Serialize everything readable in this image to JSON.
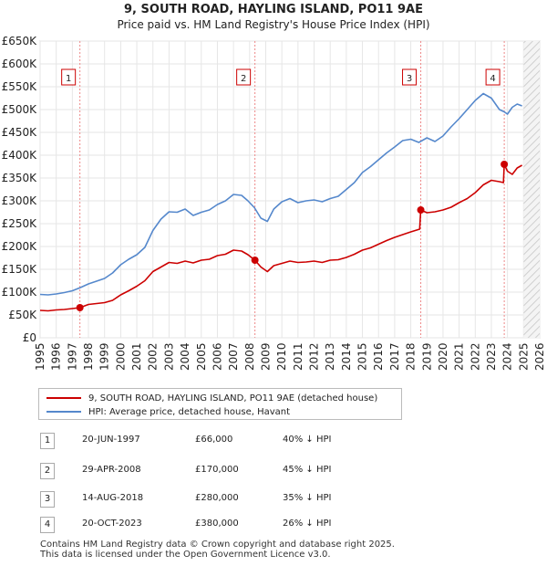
{
  "header": {
    "title": "9, SOUTH ROAD, HAYLING ISLAND, PO11 9AE",
    "subtitle": "Price paid vs. HM Land Registry's House Price Index (HPI)"
  },
  "chart_data": {
    "type": "line",
    "title": "9, SOUTH ROAD, HAYLING ISLAND, PO11 9AE",
    "subtitle": "Price paid vs. HM Land Registry's House Price Index (HPI)",
    "xlim": [
      1995,
      2026
    ],
    "ylim": [
      0,
      650000
    ],
    "y_ticks": [
      0,
      50000,
      100000,
      150000,
      200000,
      250000,
      300000,
      350000,
      400000,
      450000,
      500000,
      550000,
      600000,
      650000
    ],
    "y_tick_labels": [
      "£0",
      "£50K",
      "£100K",
      "£150K",
      "£200K",
      "£250K",
      "£300K",
      "£350K",
      "£400K",
      "£450K",
      "£500K",
      "£550K",
      "£600K",
      "£650K"
    ],
    "x_ticks": [
      1995,
      1996,
      1997,
      1998,
      1999,
      2000,
      2001,
      2002,
      2003,
      2004,
      2005,
      2006,
      2007,
      2008,
      2009,
      2010,
      2011,
      2012,
      2013,
      2014,
      2015,
      2016,
      2017,
      2018,
      2019,
      2020,
      2021,
      2022,
      2023,
      2024,
      2025,
      2026
    ],
    "grid": true,
    "forecast_start": 2025.0,
    "series": [
      {
        "name": "9, SOUTH ROAD, HAYLING ISLAND, PO11 9AE (detached house)",
        "color": "#cc0000",
        "x": [
          1995.0,
          1995.5,
          1996.0,
          1996.5,
          1997.0,
          1997.47,
          1998.0,
          1998.5,
          1999.0,
          1999.5,
          2000.0,
          2000.5,
          2001.0,
          2001.5,
          2002.0,
          2002.5,
          2003.0,
          2003.5,
          2004.0,
          2004.5,
          2005.0,
          2005.5,
          2006.0,
          2006.5,
          2007.0,
          2007.5,
          2007.9,
          2008.33,
          2008.7,
          2009.1,
          2009.5,
          2010.0,
          2010.5,
          2011.0,
          2011.5,
          2012.0,
          2012.5,
          2013.0,
          2013.5,
          2014.0,
          2014.5,
          2015.0,
          2015.5,
          2016.0,
          2016.5,
          2017.0,
          2017.5,
          2018.0,
          2018.55,
          2018.62,
          2019.0,
          2019.5,
          2020.0,
          2020.5,
          2021.0,
          2021.5,
          2022.0,
          2022.5,
          2023.0,
          2023.5,
          2023.75,
          2023.8,
          2024.0,
          2024.3,
          2024.6,
          2024.9
        ],
        "values": [
          60000,
          59000,
          61000,
          62000,
          64000,
          66000,
          73000,
          75000,
          77000,
          82000,
          94000,
          103000,
          113000,
          125000,
          145000,
          155000,
          165000,
          163000,
          168000,
          164000,
          170000,
          172000,
          180000,
          183000,
          192000,
          190000,
          182000,
          170000,
          155000,
          145000,
          158000,
          163000,
          168000,
          165000,
          166000,
          168000,
          165000,
          170000,
          171000,
          176000,
          183000,
          192000,
          197000,
          205000,
          213000,
          220000,
          226000,
          232000,
          238000,
          280000,
          274000,
          276000,
          280000,
          286000,
          296000,
          305000,
          318000,
          335000,
          345000,
          342000,
          340000,
          380000,
          365000,
          358000,
          372000,
          378000
        ]
      },
      {
        "name": "HPI: Average price, detached house, Havant",
        "color": "#5588cc",
        "x": [
          1995.0,
          1995.5,
          1996.0,
          1996.5,
          1997.0,
          1997.5,
          1998.0,
          1998.5,
          1999.0,
          1999.5,
          2000.0,
          2000.5,
          2001.0,
          2001.5,
          2002.0,
          2002.5,
          2003.0,
          2003.5,
          2004.0,
          2004.5,
          2005.0,
          2005.5,
          2006.0,
          2006.5,
          2007.0,
          2007.5,
          2007.9,
          2008.3,
          2008.7,
          2009.1,
          2009.5,
          2010.0,
          2010.5,
          2011.0,
          2011.5,
          2012.0,
          2012.5,
          2013.0,
          2013.5,
          2014.0,
          2014.5,
          2015.0,
          2015.5,
          2016.0,
          2016.5,
          2017.0,
          2017.5,
          2018.0,
          2018.5,
          2019.0,
          2019.5,
          2020.0,
          2020.5,
          2021.0,
          2021.5,
          2022.0,
          2022.5,
          2023.0,
          2023.5,
          2023.8,
          2024.0,
          2024.3,
          2024.6,
          2024.9
        ],
        "values": [
          95000,
          94000,
          96000,
          99000,
          103000,
          110000,
          118000,
          124000,
          130000,
          142000,
          160000,
          172000,
          182000,
          198000,
          235000,
          260000,
          276000,
          275000,
          282000,
          268000,
          275000,
          280000,
          292000,
          300000,
          314000,
          312000,
          300000,
          285000,
          262000,
          255000,
          282000,
          298000,
          305000,
          296000,
          300000,
          302000,
          298000,
          305000,
          310000,
          325000,
          340000,
          362000,
          375000,
          390000,
          405000,
          418000,
          432000,
          435000,
          428000,
          438000,
          430000,
          442000,
          462000,
          480000,
          500000,
          520000,
          535000,
          525000,
          500000,
          495000,
          490000,
          505000,
          512000,
          508000
        ]
      }
    ],
    "sale_markers": [
      {
        "label": "1",
        "x": 1997.47,
        "price": 66000
      },
      {
        "label": "2",
        "x": 2008.33,
        "price": 170000
      },
      {
        "label": "3",
        "x": 2018.62,
        "price": 280000
      },
      {
        "label": "4",
        "x": 2023.8,
        "price": 380000
      }
    ]
  },
  "legend": {
    "items": [
      {
        "label": "9, SOUTH ROAD, HAYLING ISLAND, PO11 9AE (detached house)",
        "color": "#cc0000"
      },
      {
        "label": "HPI: Average price, detached house, Havant",
        "color": "#5588cc"
      }
    ]
  },
  "sales": [
    {
      "num": "1",
      "date": "20-JUN-1997",
      "price": "£66,000",
      "hpi": "40% ↓ HPI"
    },
    {
      "num": "2",
      "date": "29-APR-2008",
      "price": "£170,000",
      "hpi": "45% ↓ HPI"
    },
    {
      "num": "3",
      "date": "14-AUG-2018",
      "price": "£280,000",
      "hpi": "35% ↓ HPI"
    },
    {
      "num": "4",
      "date": "20-OCT-2023",
      "price": "£380,000",
      "hpi": "26% ↓ HPI"
    }
  ],
  "footer": {
    "line1": "Contains HM Land Registry data © Crown copyright and database right 2025.",
    "line2": "This data is licensed under the Open Government Licence v3.0."
  }
}
